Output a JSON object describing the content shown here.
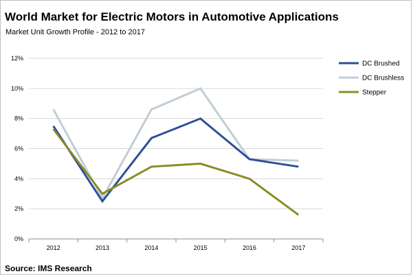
{
  "chart_data": {
    "type": "line",
    "title": "World Market for Electric Motors in Automotive Applications",
    "subtitle": "Market Unit Growth Profile - 2012 to 2017",
    "source": "Source: IMS Research",
    "xlabel": "",
    "ylabel": "",
    "categories": [
      "2012",
      "2013",
      "2014",
      "2015",
      "2016",
      "2017"
    ],
    "y_ticks": [
      "0%",
      "2%",
      "4%",
      "6%",
      "8%",
      "10%",
      "12%"
    ],
    "ylim": [
      0,
      12
    ],
    "grid": true,
    "legend_position": "right",
    "series": [
      {
        "name": "DC Brushed",
        "color": "#2e4f9a",
        "values": [
          7.5,
          2.5,
          6.7,
          8.0,
          5.3,
          4.8
        ]
      },
      {
        "name": "DC Brushless",
        "color": "#c0cdd6",
        "values": [
          8.6,
          2.7,
          8.6,
          10.0,
          5.3,
          5.2
        ]
      },
      {
        "name": "Stepper",
        "color": "#8a8c25",
        "values": [
          7.3,
          3.0,
          4.8,
          5.0,
          4.0,
          1.6
        ]
      }
    ]
  }
}
